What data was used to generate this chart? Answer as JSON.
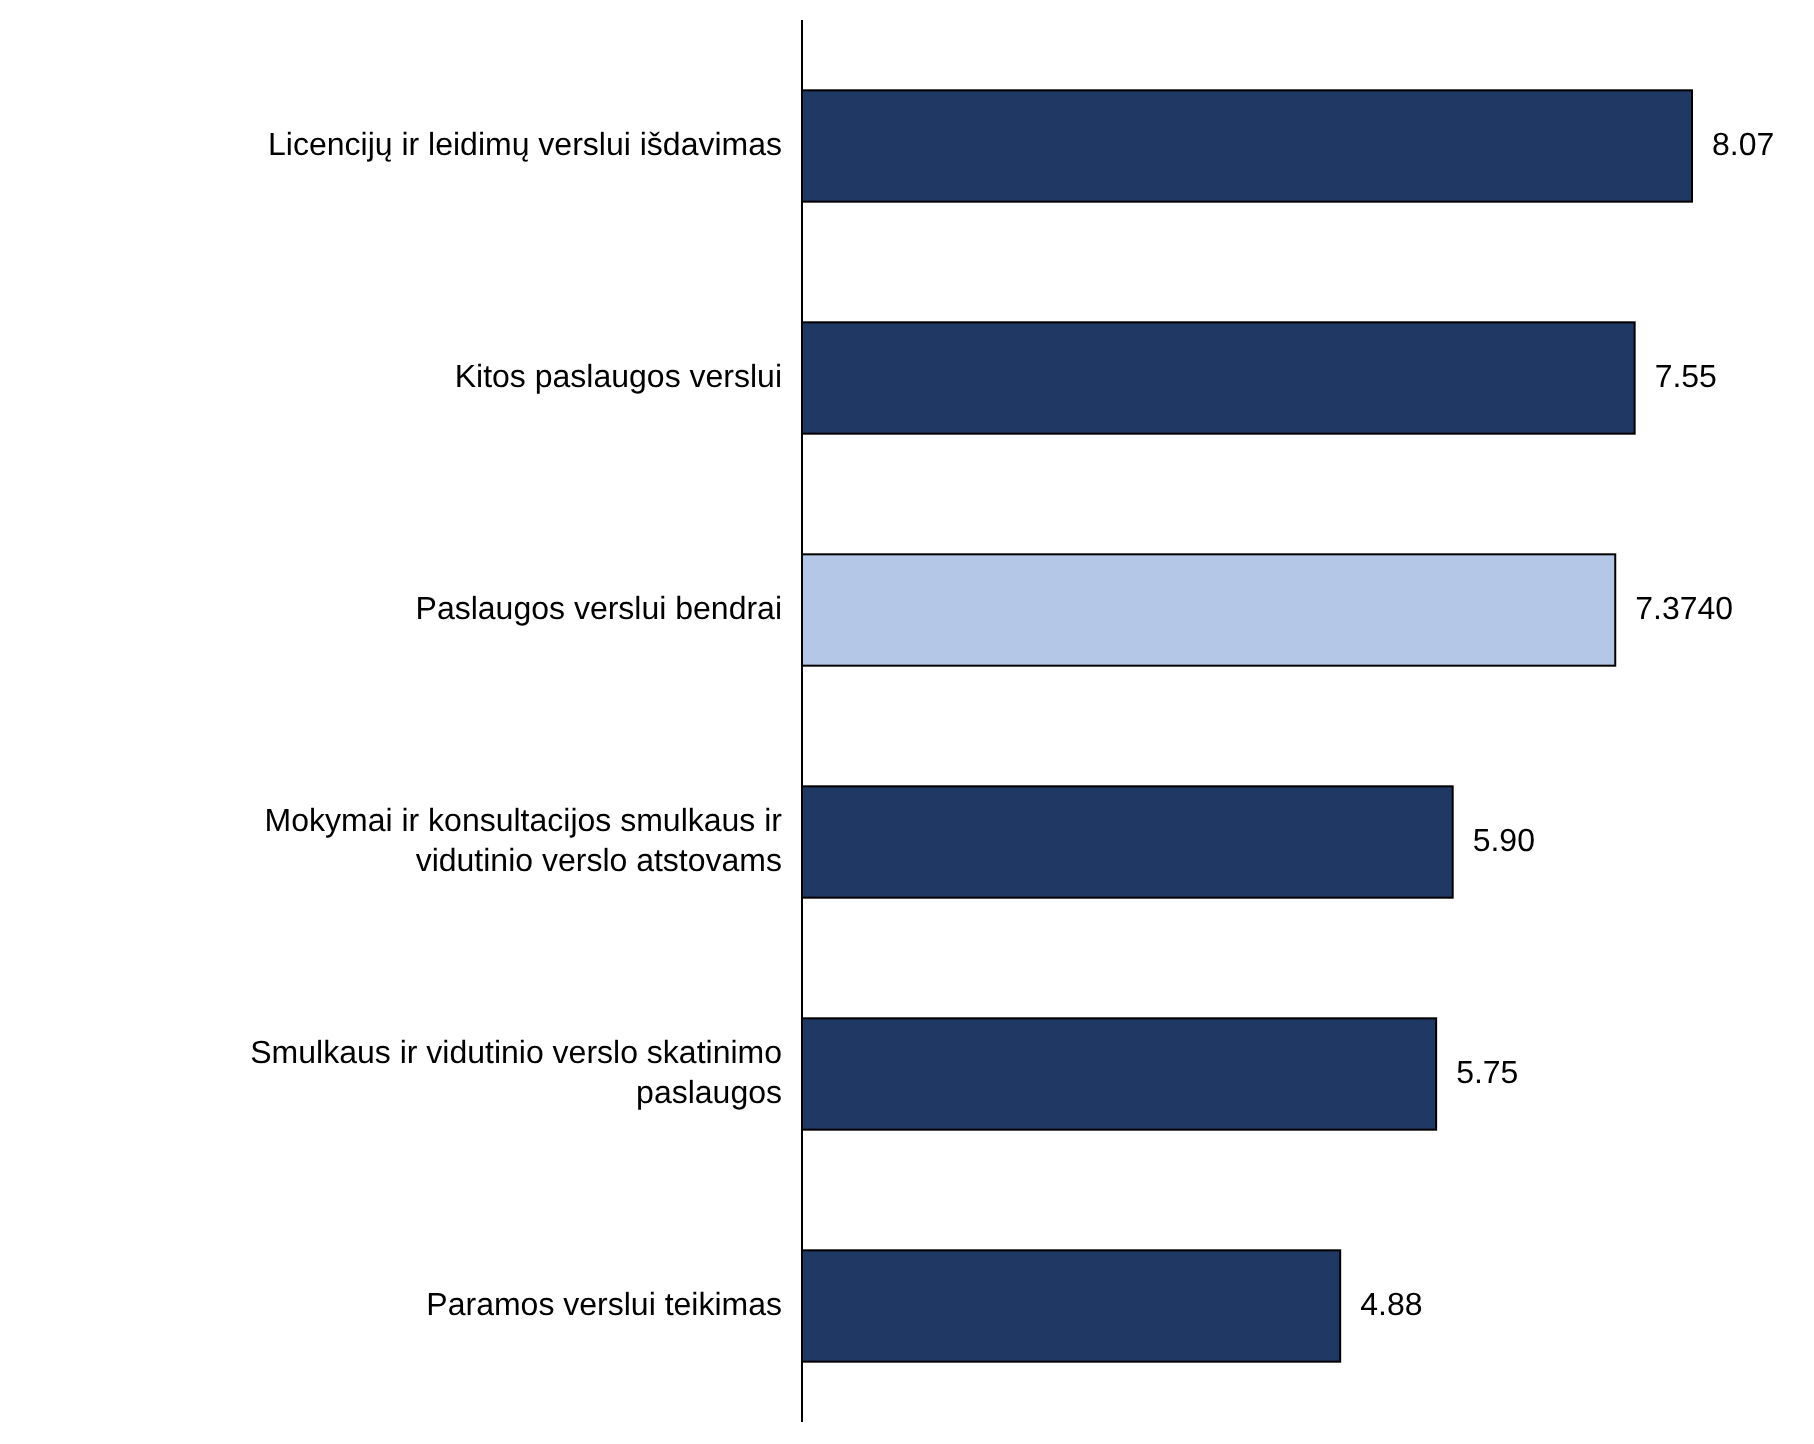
{
  "chart_data": {
    "type": "bar",
    "orientation": "horizontal",
    "categories": [
      "Licencijų ir leidimų verslui išdavimas",
      "Kitos paslaugos verslui",
      "Paslaugos verslui bendrai",
      "Mokymai ir konsultacijos smulkaus ir vidutinio verslo atstovams",
      "Smulkaus ir vidutinio verslo skatinimo paslaugos",
      "Paramos verslui teikimas"
    ],
    "values": [
      8.07,
      7.55,
      7.374,
      5.9,
      5.75,
      4.88
    ],
    "colors": [
      "#203864",
      "#203864",
      "#b4c7e7",
      "#203864",
      "#203864",
      "#203864"
    ],
    "value_labels": [
      "8.07",
      "7.55",
      "7.3740",
      "5.90",
      "5.75",
      "4.88"
    ]
  }
}
